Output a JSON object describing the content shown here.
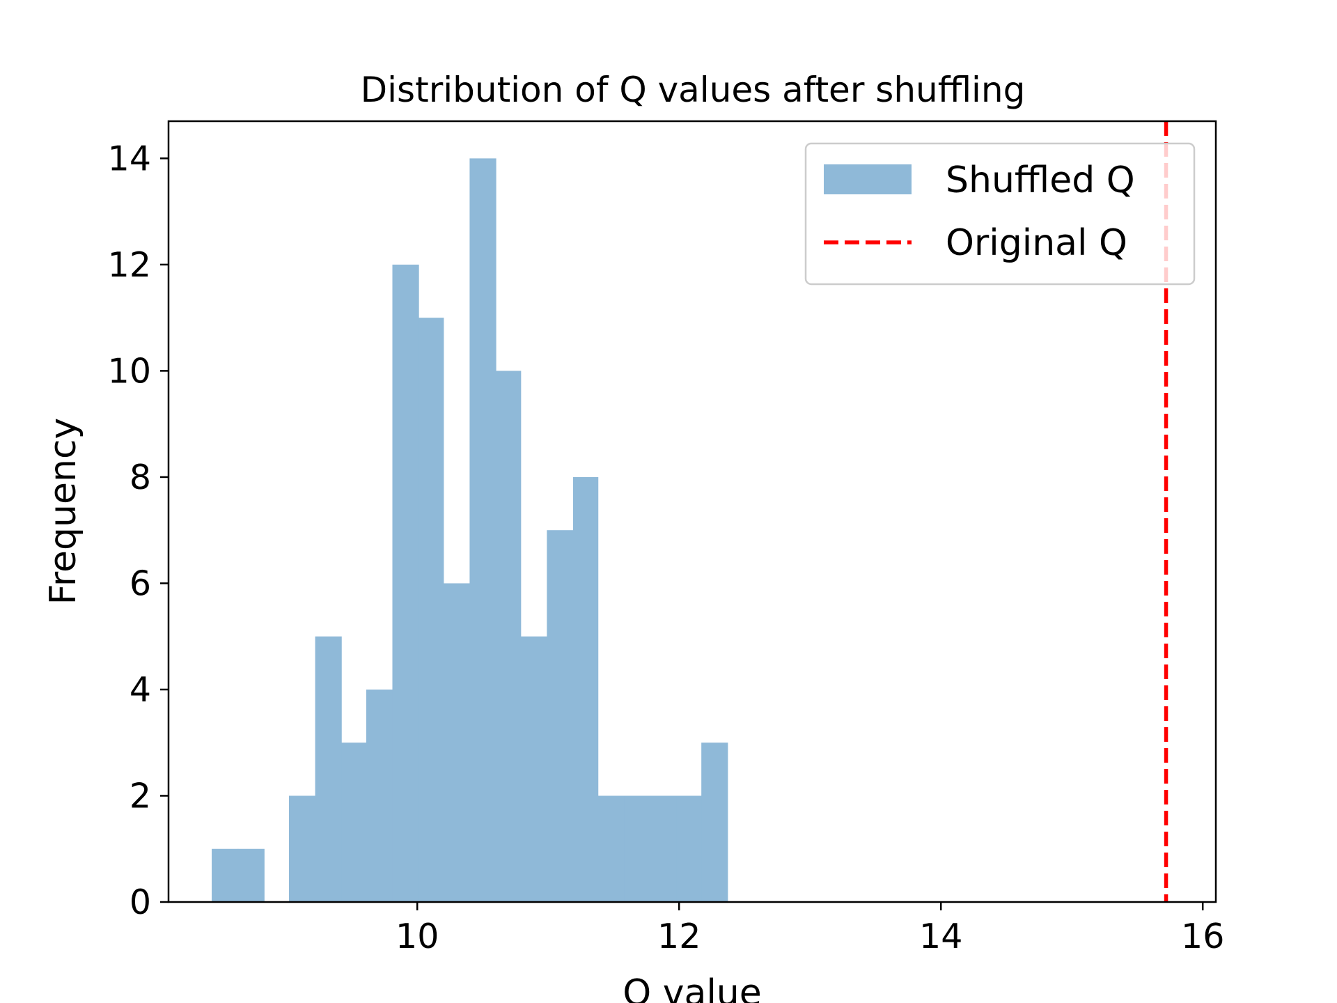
{
  "chart_data": {
    "type": "bar",
    "subtype": "histogram",
    "title": "Distribution of Q values after shuffling",
    "xlabel": "Q value",
    "ylabel": "Frequency",
    "xlim": [
      8.1,
      16.1
    ],
    "ylim": [
      0,
      14.7
    ],
    "x_ticks": [
      10,
      12,
      14,
      16
    ],
    "y_ticks": [
      0,
      2,
      4,
      6,
      8,
      10,
      12,
      14
    ],
    "bin_width": 0.197,
    "bins": [
      {
        "start": 8.43,
        "end": 8.63,
        "count": 1
      },
      {
        "start": 8.63,
        "end": 8.83,
        "count": 1
      },
      {
        "start": 8.83,
        "end": 9.02,
        "count": 0
      },
      {
        "start": 9.02,
        "end": 9.22,
        "count": 2
      },
      {
        "start": 9.22,
        "end": 9.42,
        "count": 5
      },
      {
        "start": 9.42,
        "end": 9.61,
        "count": 3
      },
      {
        "start": 9.61,
        "end": 9.81,
        "count": 4
      },
      {
        "start": 9.81,
        "end": 10.01,
        "count": 12
      },
      {
        "start": 10.01,
        "end": 10.2,
        "count": 11
      },
      {
        "start": 10.2,
        "end": 10.4,
        "count": 6
      },
      {
        "start": 10.4,
        "end": 10.6,
        "count": 14
      },
      {
        "start": 10.6,
        "end": 10.79,
        "count": 10
      },
      {
        "start": 10.79,
        "end": 10.99,
        "count": 5
      },
      {
        "start": 10.99,
        "end": 11.19,
        "count": 7
      },
      {
        "start": 11.19,
        "end": 11.38,
        "count": 8
      },
      {
        "start": 11.38,
        "end": 11.58,
        "count": 2
      },
      {
        "start": 11.58,
        "end": 11.78,
        "count": 2
      },
      {
        "start": 11.78,
        "end": 11.98,
        "count": 2
      },
      {
        "start": 11.98,
        "end": 12.17,
        "count": 2
      },
      {
        "start": 12.17,
        "end": 12.37,
        "count": 3
      }
    ],
    "original_q": 15.72,
    "series": [
      {
        "name": "Shuffled Q",
        "color": "#8fb9d8",
        "kind": "histogram"
      },
      {
        "name": "Original Q",
        "color": "#ff0000",
        "kind": "dashed-vertical-line"
      }
    ],
    "legend_position": "top-right",
    "grid": false
  }
}
